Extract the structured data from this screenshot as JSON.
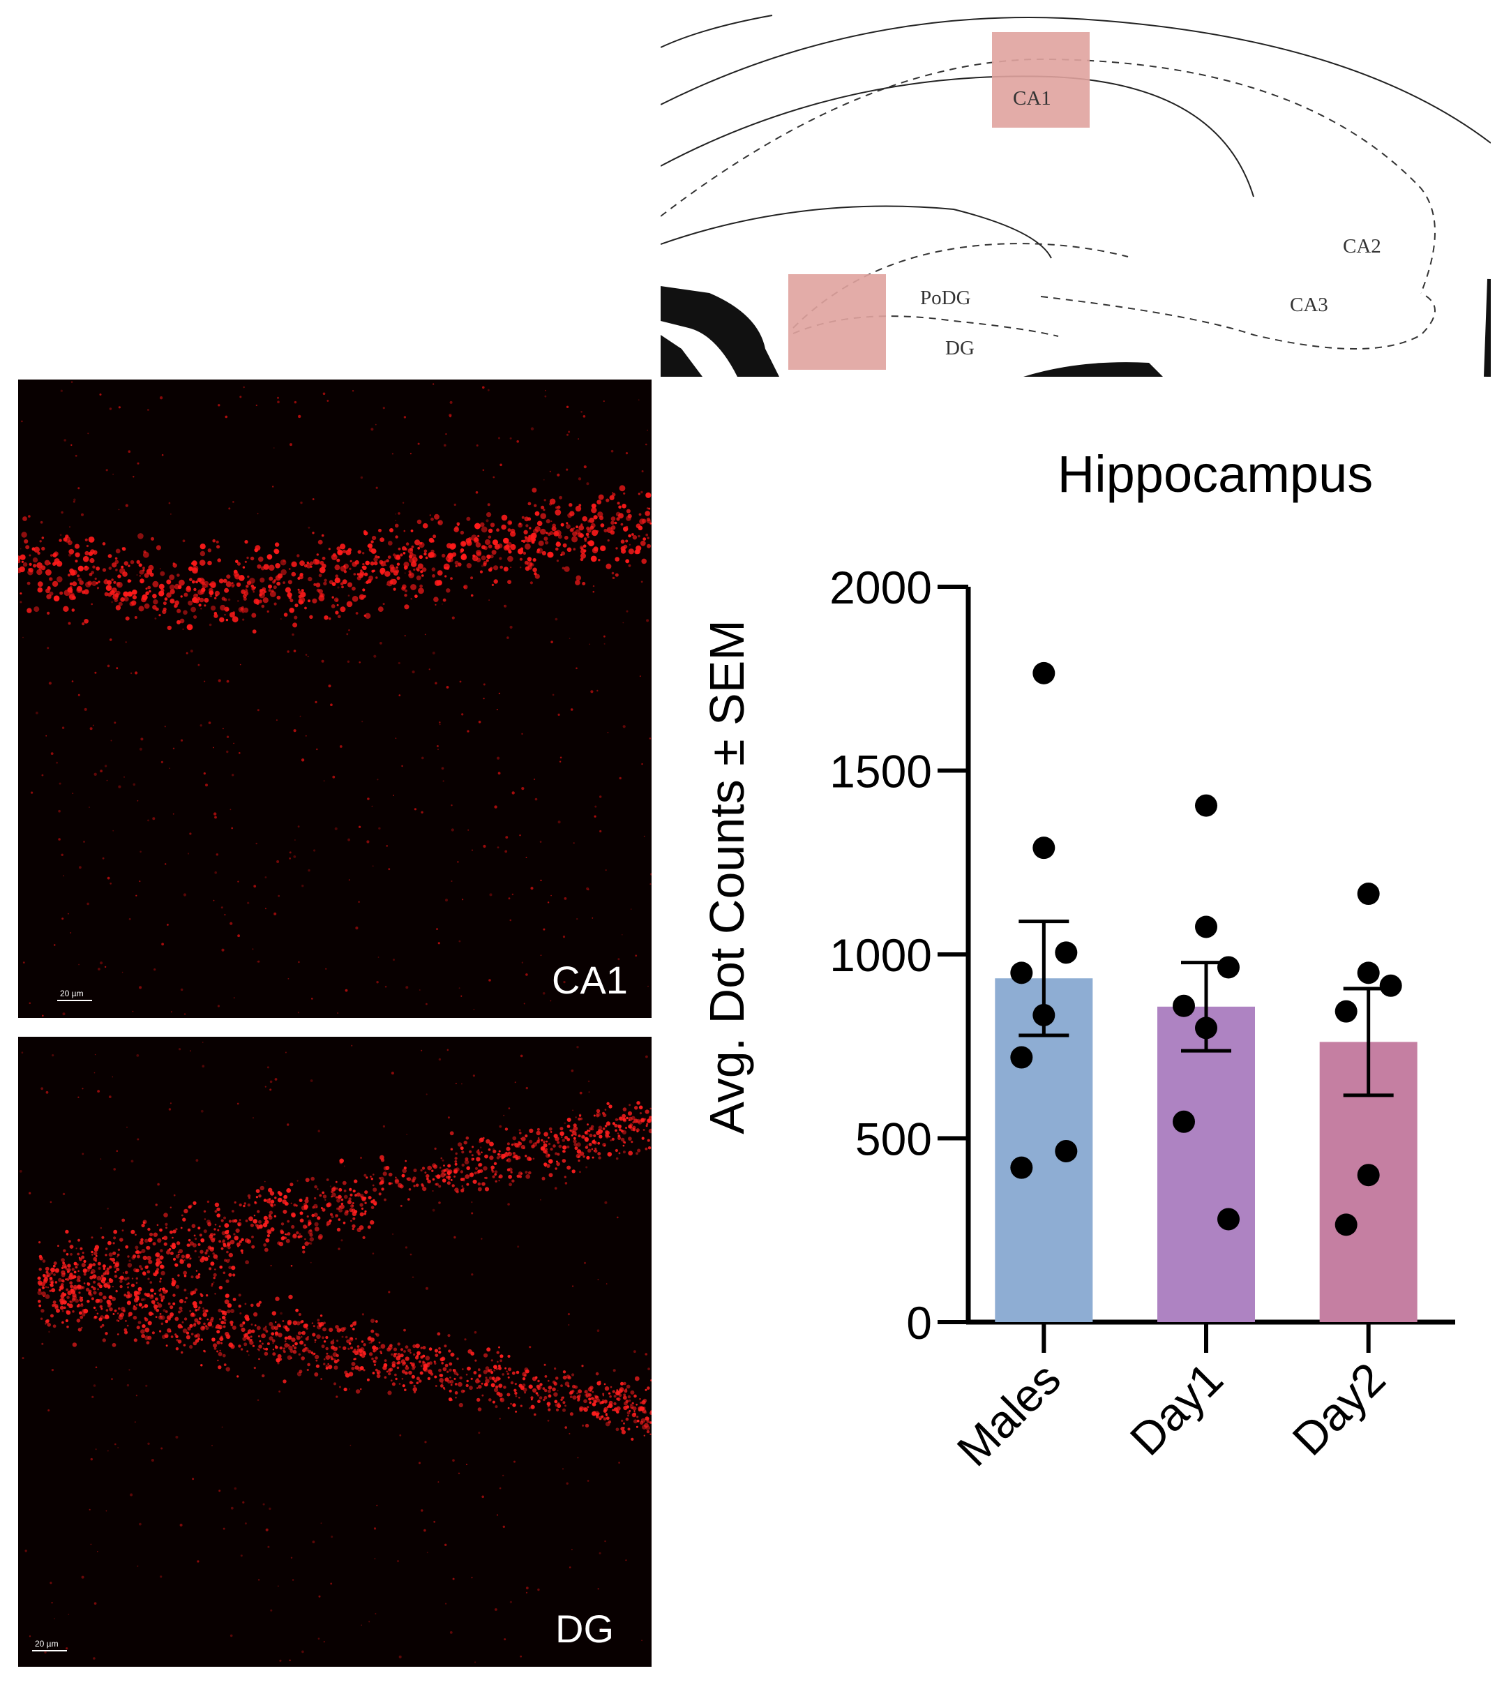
{
  "atlas": {
    "labels": {
      "ca1": "CA1",
      "ca2": "CA2",
      "ca3": "CA3",
      "podg": "PoDG",
      "dg": "DG"
    },
    "highlight_color": "#e0a39f"
  },
  "micrographs": [
    {
      "label": "CA1",
      "scalebar": "20 µm"
    },
    {
      "label": "DG",
      "scalebar": "20 µm"
    }
  ],
  "chart_data": {
    "type": "bar",
    "title": "Hippocampus",
    "xlabel": "",
    "ylabel": "Avg. Dot Counts ± SEM",
    "ylim": [
      0,
      2000
    ],
    "yticks": [
      0,
      500,
      1000,
      1500,
      2000
    ],
    "categories": [
      "Males",
      "Day1",
      "Day2"
    ],
    "values": [
      935,
      858,
      762
    ],
    "sem": [
      155,
      120,
      145
    ],
    "colors": [
      "#8eadd3",
      "#ae83c2",
      "#c57fa2"
    ],
    "points": [
      [
        1765,
        1290,
        1005,
        950,
        835,
        720,
        465,
        420
      ],
      [
        1405,
        1075,
        965,
        860,
        800,
        545,
        280
      ],
      [
        1165,
        950,
        915,
        845,
        400,
        265
      ]
    ]
  }
}
